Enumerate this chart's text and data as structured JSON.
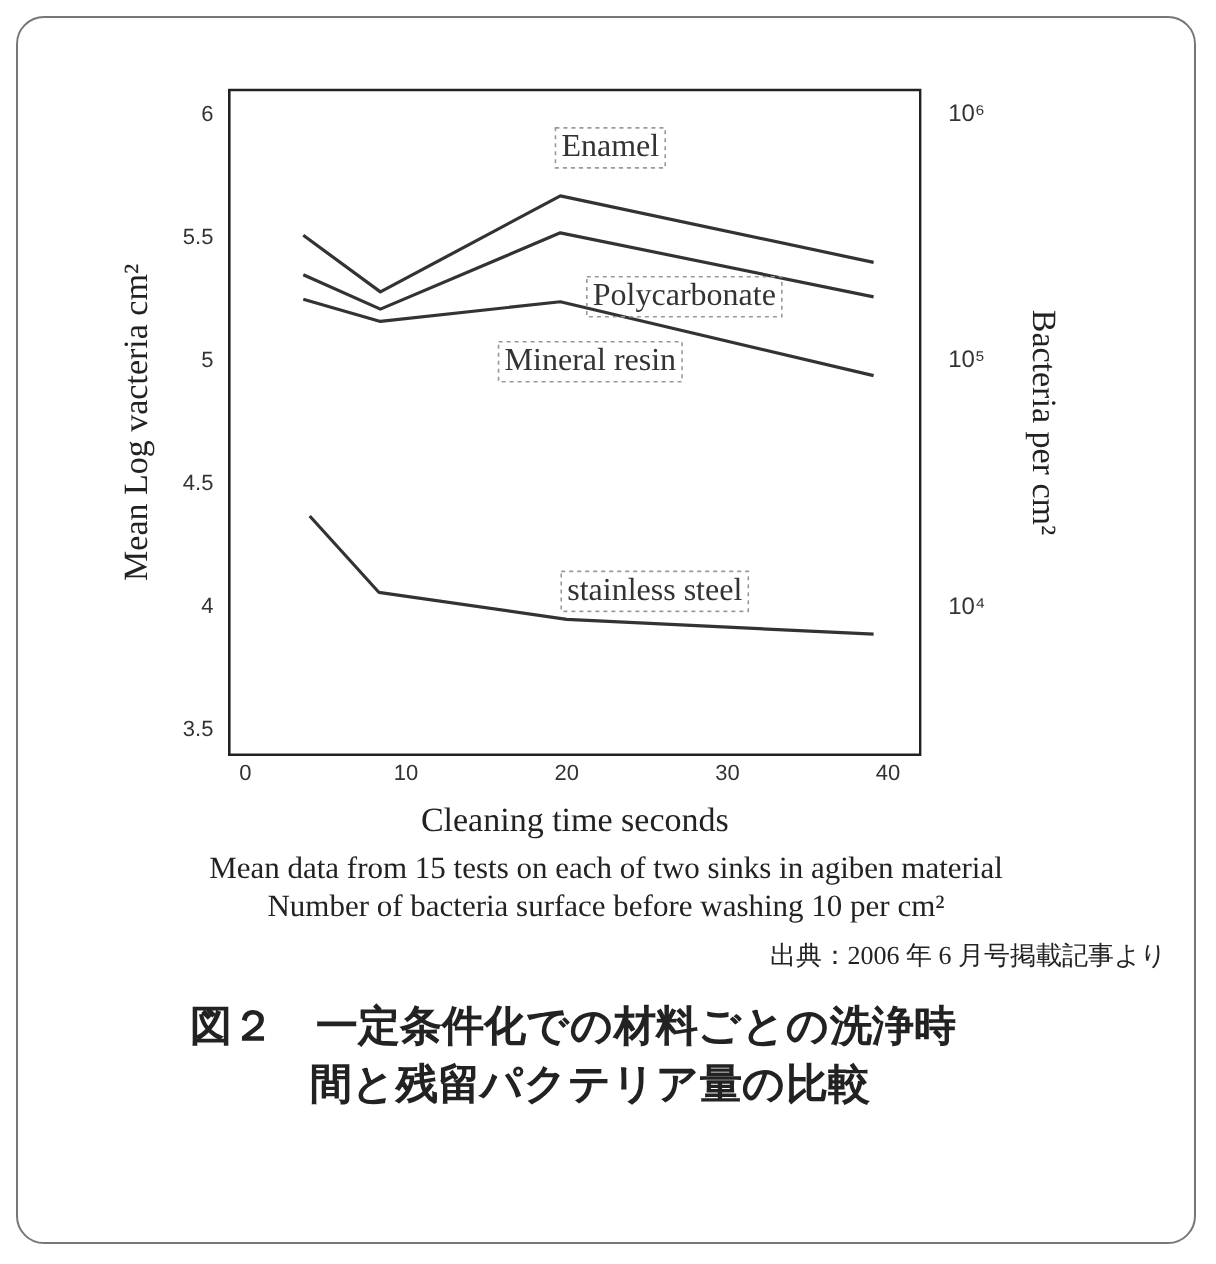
{
  "chart_data": {
    "type": "line",
    "title": "図２　一定条件化での材料ごとの洗浄時間と残留パクテリア量の比較",
    "xlabel": "Cleaning time seconds",
    "ylabel": "Mean Log vacteria cm²",
    "y2label": "Bacteria per cm²",
    "annotations": [
      "Mean data from 15 tests on each of two sinks in agiben material",
      "Number of bacteria surface before washing 10 per cm²",
      "出典：2006 年 6 月号掲載記事より"
    ],
    "series": [
      {
        "name": "Enamel",
        "color": "#333333",
        "x": [
          3.6,
          8.4,
          19.6,
          39.1
        ],
        "values": [
          5.51,
          5.28,
          5.67,
          5.4
        ]
      },
      {
        "name": "Polycarbonate",
        "color": "#333333",
        "x": [
          3.6,
          8.4,
          19.6,
          39.1
        ],
        "values": [
          5.35,
          5.21,
          5.52,
          5.26
        ]
      },
      {
        "name": "Mineral resin",
        "color": "#333333",
        "x": [
          3.6,
          8.4,
          19.6,
          39.1
        ],
        "values": [
          5.25,
          5.16,
          5.24,
          4.94
        ]
      },
      {
        "name": "stainless steel",
        "color": "#333333",
        "x": [
          4,
          8.3,
          20,
          39.1
        ],
        "values": [
          4.37,
          4.06,
          3.95,
          3.89
        ]
      }
    ],
    "xlim": [
      -1,
      42
    ],
    "xticks": [
      0,
      10,
      20,
      30,
      40
    ],
    "ylim": [
      3.4,
      6.1
    ],
    "yticks": [
      3.5,
      4,
      4.5,
      5,
      5.5,
      6
    ],
    "y2lim": [
      2512,
      1258925
    ],
    "y2ticks": [
      {
        "value": 10000,
        "label": "10⁴"
      },
      {
        "value": 100000,
        "label": "10⁵"
      },
      {
        "value": 1000000,
        "label": "10⁶"
      }
    ],
    "log": "y2",
    "grid": false,
    "legend": false,
    "marker": "none",
    "line_style": "solid"
  }
}
